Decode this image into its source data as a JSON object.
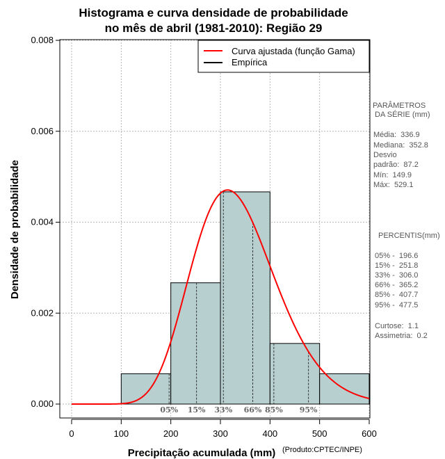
{
  "chart_data": {
    "type": "bar",
    "title_lines": [
      "Histograma e curva densidade de probabilidade",
      "no mês de abril (1981-2010): Região 29"
    ],
    "xlabel": "Precipitação acumulada (mm)",
    "ylabel": "Densidade de probabilidade",
    "credit": "(Produto:CPTEC/INPE)",
    "xlim": [
      -20,
      600
    ],
    "ylim": [
      -0.0003,
      0.008
    ],
    "x_ticks": [
      0,
      100,
      200,
      300,
      400,
      500,
      600
    ],
    "y_ticks": [
      0.0,
      0.002,
      0.004,
      0.006,
      0.008
    ],
    "y_tick_labels": [
      "0.000",
      "0.002",
      "0.004",
      "0.006",
      "0.008"
    ],
    "grid": true,
    "legend_placement": "top-right",
    "legend": [
      {
        "label": "Curva ajustada (função Gama)",
        "color": "#ff0000"
      },
      {
        "label": "Empírica",
        "color": "#000000"
      }
    ],
    "bins": [
      {
        "from": 100,
        "to": 200,
        "density": 0.000667
      },
      {
        "from": 200,
        "to": 300,
        "density": 0.002667
      },
      {
        "from": 300,
        "to": 400,
        "density": 0.004667
      },
      {
        "from": 400,
        "to": 500,
        "density": 0.001333
      },
      {
        "from": 500,
        "to": 600,
        "density": 0.000667
      }
    ],
    "bar_color": "#b7cfcf",
    "curve_color": "#ff0000",
    "gamma_fit": {
      "mean": 336.9,
      "sd": 87.2
    },
    "percentile_marks": [
      {
        "label": "05%",
        "x": 196.6
      },
      {
        "label": "15%",
        "x": 251.8
      },
      {
        "label": "33%",
        "x": 306.0
      },
      {
        "label": "66%",
        "x": 365.2
      },
      {
        "label": "85%",
        "x": 407.7
      },
      {
        "label": "95%",
        "x": 477.5
      }
    ]
  },
  "side_panel": {
    "params_title_1": "PARÂMETROS",
    "params_title_2": " DA SÉRIE (mm)",
    "media": "Média:  336.9",
    "mediana": "Mediana:  352.8",
    "desvio_1": "Desvio",
    "desvio_2": "padrão:  87.2",
    "min": "Mín:  149.9",
    "max": "Máx:  529.1",
    "pct_title": "PERCENTIS(mm)",
    "p05": "05% -  196.6",
    "p15": "15% -  251.8",
    "p33": "33% -  306.0",
    "p66": "66% -  365.2",
    "p85": "85% -  407.7",
    "p95": "95% -  477.5",
    "curtose": "Curtose:  1.1",
    "assimetria": "Assimetria:  0.2"
  }
}
